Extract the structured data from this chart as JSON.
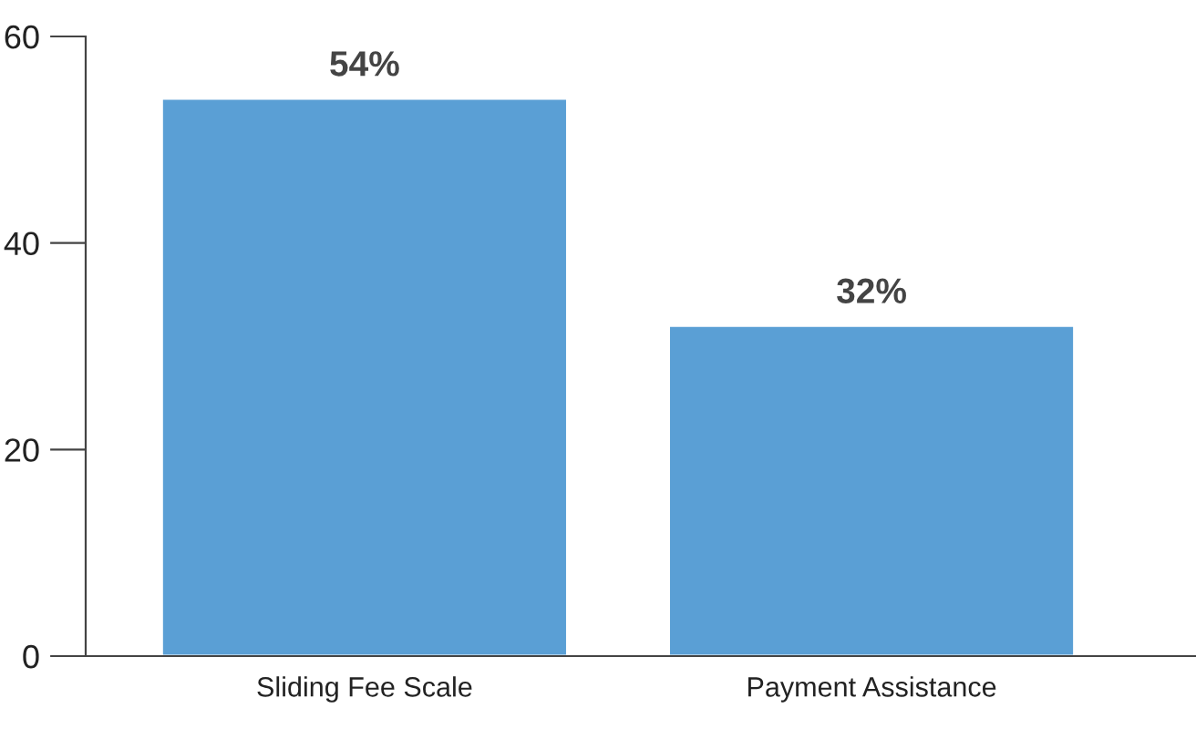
{
  "chart_data": {
    "type": "bar",
    "categories": [
      "Sliding Fee Scale",
      "Payment Assistance"
    ],
    "values": [
      54,
      32
    ],
    "value_labels": [
      "54%",
      "32%"
    ],
    "color": "#5a9fd5",
    "ylim": [
      0,
      60
    ],
    "yticks": [
      0,
      20,
      40,
      60
    ]
  }
}
